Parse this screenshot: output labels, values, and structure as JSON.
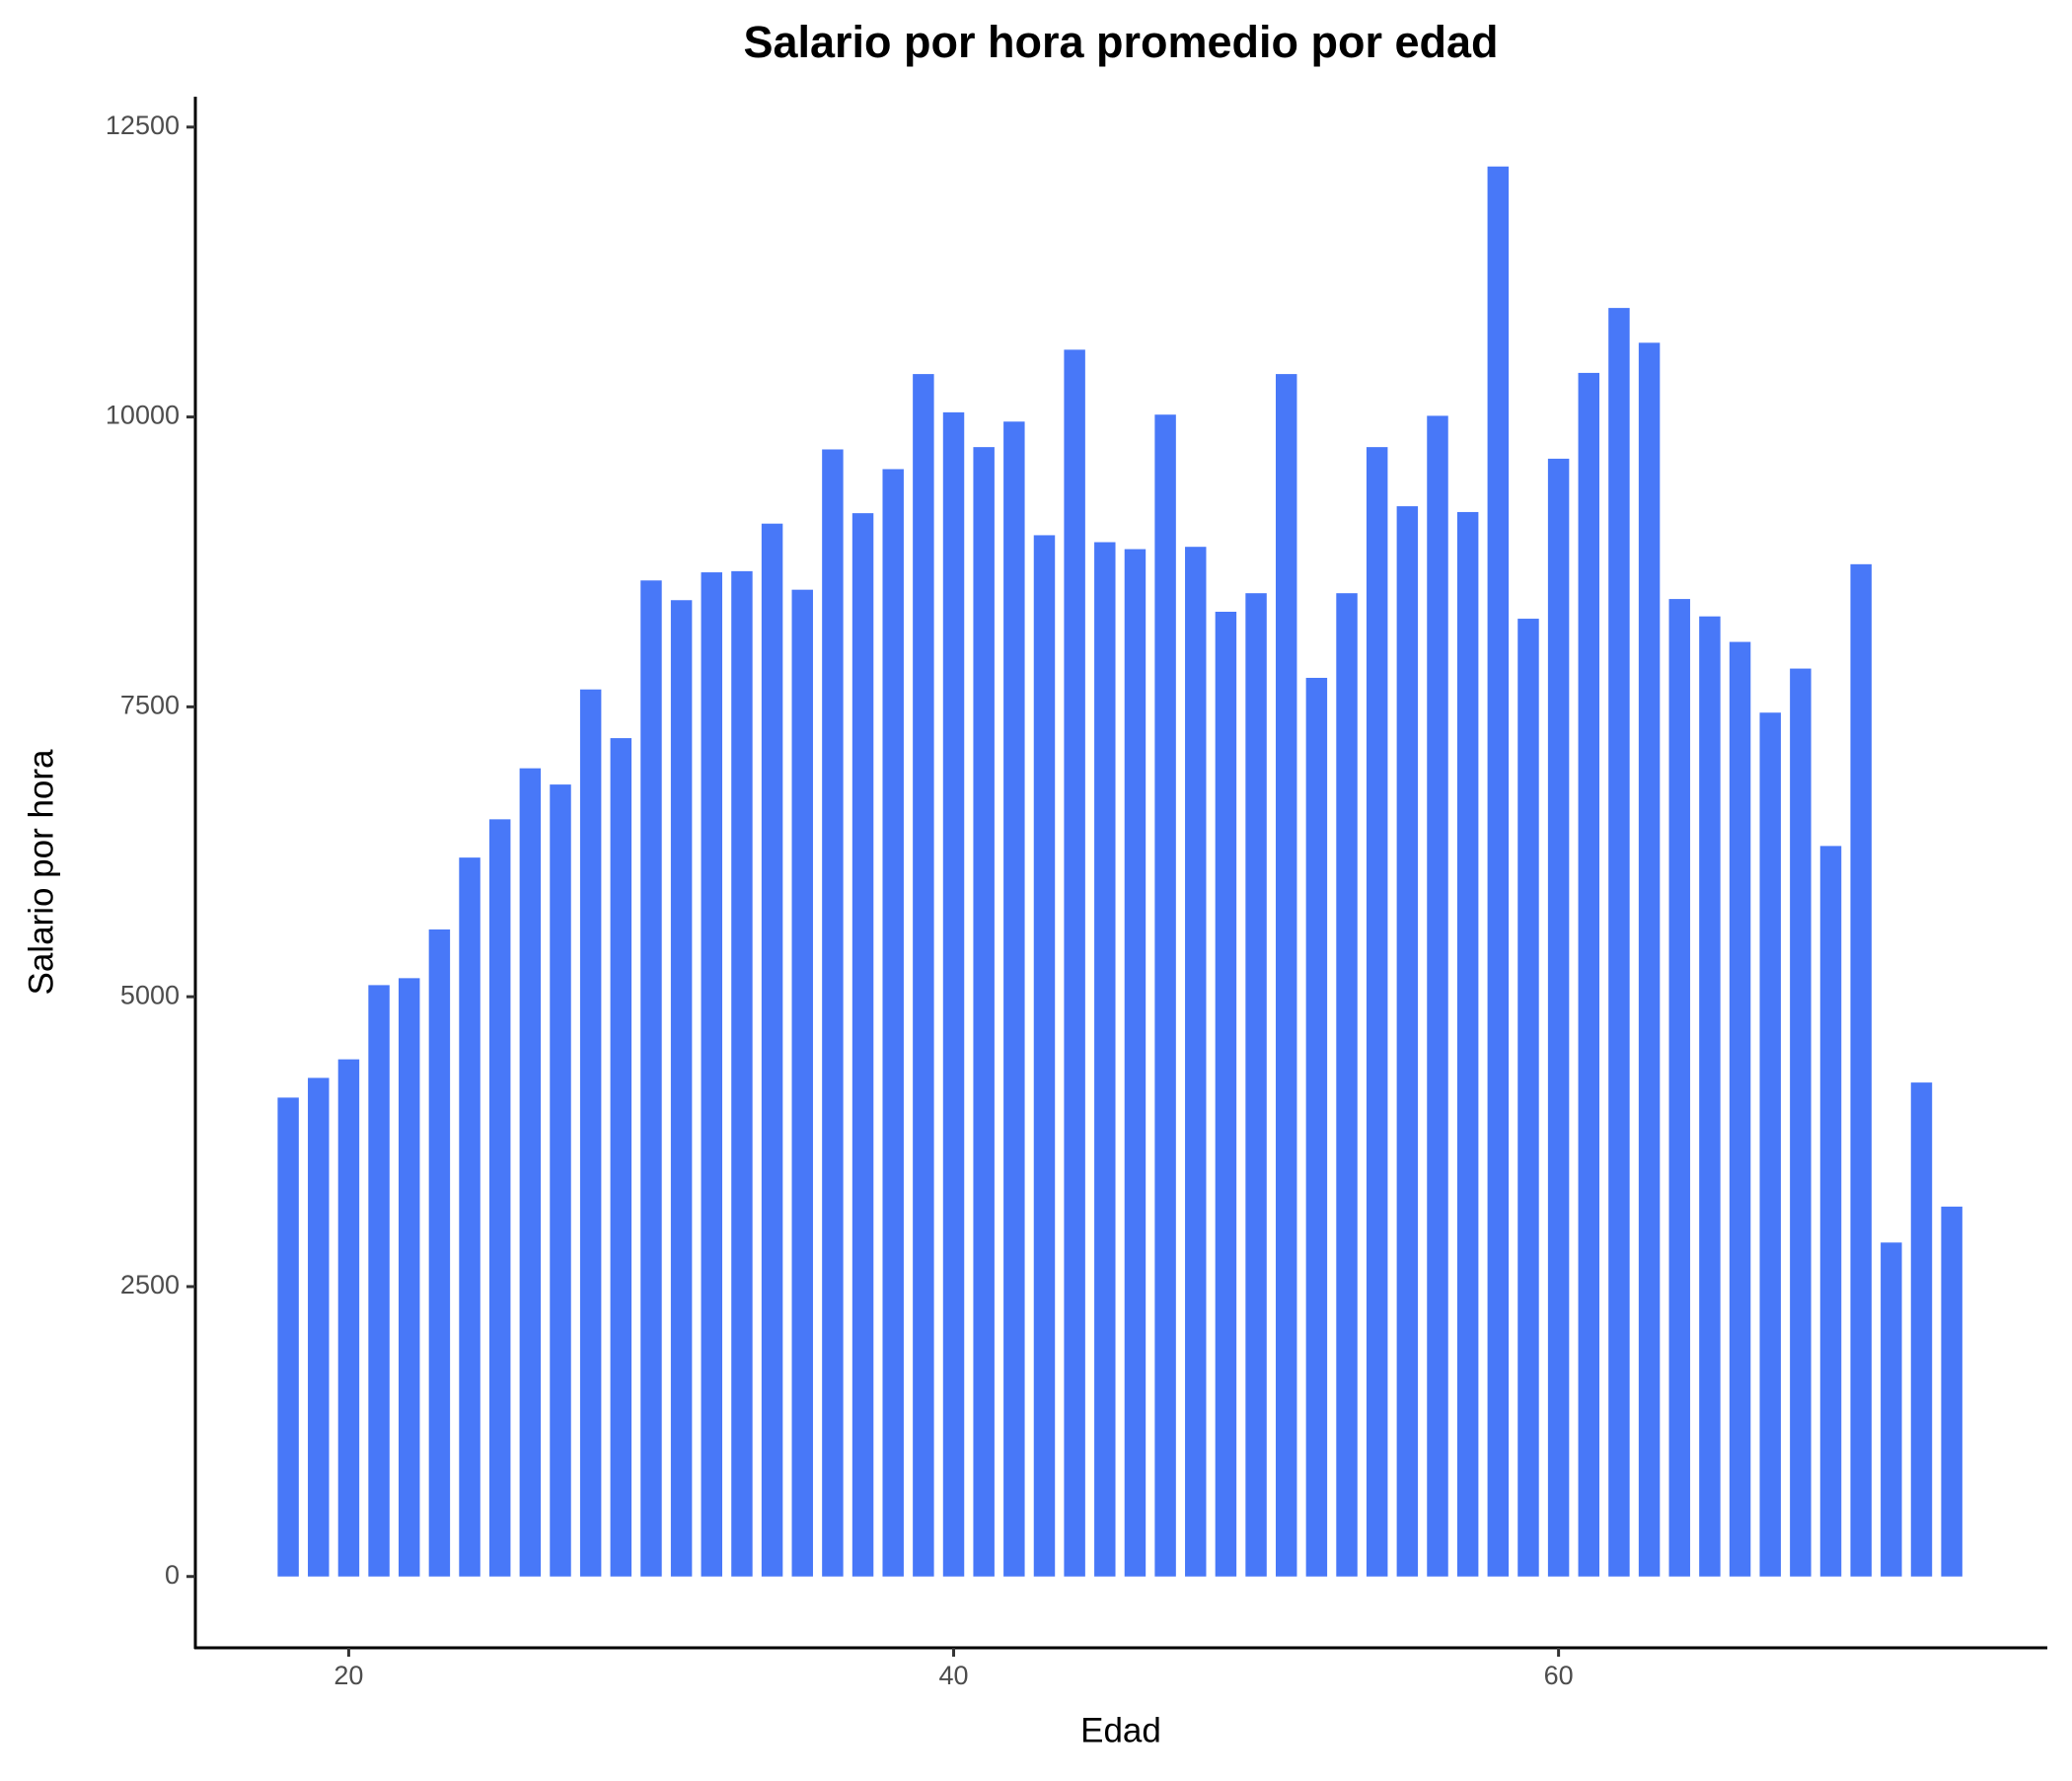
{
  "chart_data": {
    "type": "bar",
    "title": "Salario por hora promedio por edad",
    "x_label": "Edad",
    "y_label": "Salario por hora",
    "color": "#4878f8",
    "x": [
      18,
      19,
      20,
      21,
      22,
      23,
      24,
      25,
      26,
      27,
      28,
      29,
      30,
      31,
      32,
      33,
      34,
      35,
      36,
      37,
      38,
      39,
      40,
      41,
      42,
      43,
      44,
      45,
      46,
      47,
      48,
      49,
      50,
      51,
      52,
      53,
      54,
      55,
      56,
      57,
      58,
      59,
      60,
      61,
      62,
      63,
      64,
      65,
      66,
      67,
      68,
      69,
      70,
      71,
      72,
      73
    ],
    "values": [
      4130,
      4300,
      4460,
      5100,
      5160,
      5580,
      6200,
      6530,
      6970,
      6830,
      7650,
      7230,
      8590,
      8420,
      8660,
      8670,
      9080,
      8510,
      9720,
      9170,
      9550,
      10370,
      10040,
      9740,
      9960,
      8980,
      10580,
      8920,
      8860,
      10020,
      8880,
      8320,
      8480,
      10370,
      7750,
      8480,
      9740,
      9230,
      10010,
      9180,
      12160,
      8260,
      9640,
      10380,
      10940,
      10640,
      8430,
      8280,
      8060,
      7450,
      7830,
      6300,
      8730,
      2880,
      4260,
      3190
    ],
    "xlim": [
      14.93,
      76.16
    ],
    "xticks": [
      20,
      40,
      60
    ],
    "ylim": [
      -615,
      12762
    ],
    "yticks": [
      0,
      2500,
      5000,
      7500,
      10000,
      12500
    ],
    "grid": false
  }
}
